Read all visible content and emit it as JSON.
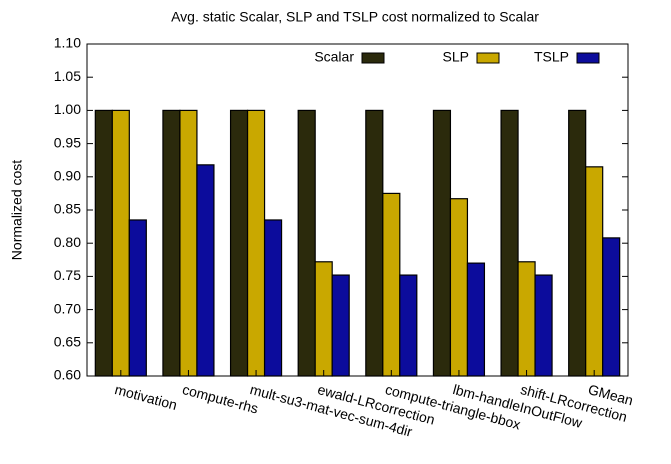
{
  "chart_data": {
    "type": "bar",
    "title": "Avg. static Scalar, SLP and TSLP cost normalized to Scalar",
    "y_label": "Normalized cost",
    "categories": [
      "motivation",
      "compute-rhs",
      "mult-su3-mat-vec-sum-4dir",
      "ewald-LRcorrection",
      "compute-triangle-bbox",
      "lbm-handleInOutFlow",
      "shift-LRcorrection",
      "GMean"
    ],
    "series": [
      {
        "name": "Scalar",
        "color": "#2b2a0c",
        "values": [
          1.0,
          1.0,
          1.0,
          1.0,
          1.0,
          1.0,
          1.0,
          1.0
        ]
      },
      {
        "name": "SLP",
        "color": "#c9a800",
        "values": [
          1.0,
          1.0,
          1.0,
          0.772,
          0.875,
          0.867,
          0.772,
          0.915
        ]
      },
      {
        "name": "TSLP",
        "color": "#0c0c9c",
        "values": [
          0.835,
          0.918,
          0.835,
          0.752,
          0.752,
          0.77,
          0.752,
          0.808
        ]
      }
    ],
    "ylim": [
      0.6,
      1.1
    ],
    "yticks": [
      {
        "value": 0.6,
        "label": "0.60"
      },
      {
        "value": 0.65,
        "label": "0.65"
      },
      {
        "value": 0.7,
        "label": "0.70"
      },
      {
        "value": 0.75,
        "label": "0.75"
      },
      {
        "value": 0.8,
        "label": "0.80"
      },
      {
        "value": 0.85,
        "label": "0.85"
      },
      {
        "value": 0.9,
        "label": "0.90"
      },
      {
        "value": 0.95,
        "label": "0.95"
      },
      {
        "value": 1.0,
        "label": "1.00"
      },
      {
        "value": 1.05,
        "label": "1.05"
      },
      {
        "value": 1.1,
        "label": "1.10"
      }
    ],
    "grid": false,
    "legend": "top-right"
  }
}
